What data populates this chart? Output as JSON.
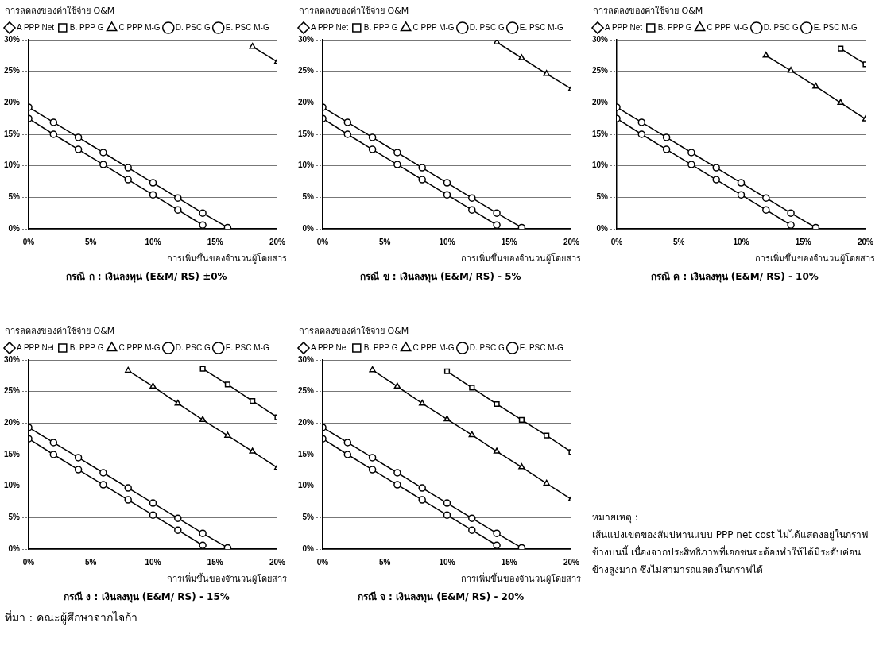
{
  "chart_data": [
    {
      "type": "line",
      "title": "กรณี ก : เงินลงทุน  (E&M/ RS) ±0%",
      "ylabel": "การลดลงของค่าใช้จ่าย O&M",
      "xlabel": "การเพิ่มขึ้นของจำนวนผู้โดยสาร",
      "x": [
        0,
        2,
        4,
        6,
        8,
        10,
        12,
        14,
        16,
        18,
        20
      ],
      "xlim": [
        0,
        20
      ],
      "xticks": [
        {
          "value": 0,
          "label": "0%"
        },
        {
          "value": 5,
          "label": "5%"
        },
        {
          "value": 10,
          "label": "10%"
        },
        {
          "value": 15,
          "label": "15%"
        },
        {
          "value": 20,
          "label": "20%"
        }
      ],
      "ylim": [
        0,
        30
      ],
      "yticks": [
        {
          "value": 0,
          "label": "0%"
        },
        {
          "value": 5,
          "label": "5%"
        },
        {
          "value": 10,
          "label": "10%"
        },
        {
          "value": 15,
          "label": "15%"
        },
        {
          "value": 20,
          "label": "20%"
        },
        {
          "value": 25,
          "label": "25%"
        },
        {
          "value": 30,
          "label": "30%"
        }
      ],
      "grid": "y",
      "legend": "top",
      "line_style": "solid",
      "series": [
        {
          "name": "A PPP Net",
          "color": "#000000",
          "marker": "diamond",
          "values": [
            null,
            null,
            null,
            null,
            null,
            null,
            null,
            null,
            null,
            null,
            null
          ]
        },
        {
          "name": "B. PPP G",
          "color": "#000000",
          "marker": "square",
          "values": [
            null,
            null,
            null,
            null,
            null,
            null,
            null,
            null,
            null,
            null,
            null
          ]
        },
        {
          "name": "C PPP M-G",
          "color": "#000000",
          "marker": "triangle",
          "values": [
            null,
            null,
            null,
            null,
            null,
            null,
            null,
            null,
            null,
            28.9,
            26.5
          ]
        },
        {
          "name": "D. PSC G",
          "color": "#000000",
          "marker": "circle",
          "values": [
            19.3,
            16.9,
            14.5,
            12.1,
            9.7,
            7.3,
            4.9,
            2.5,
            0.2,
            null,
            null
          ]
        },
        {
          "name": "E. PSC M-G",
          "color": "#000000",
          "marker": "circle",
          "values": [
            17.5,
            15.0,
            12.6,
            10.2,
            7.8,
            5.4,
            3.0,
            0.6,
            null,
            null,
            null
          ]
        }
      ]
    },
    {
      "type": "line",
      "title": "กรณี ข : เงินลงทุน (E&M/ RS) - 5%",
      "ylabel": "การลดลงของค่าใช้จ่าย O&M",
      "xlabel": "การเพิ่มขึ้นของจำนวนผู้โดยสาร",
      "x": [
        0,
        2,
        4,
        6,
        8,
        10,
        12,
        14,
        16,
        18,
        20
      ],
      "xlim": [
        0,
        20
      ],
      "xticks": [
        {
          "value": 0,
          "label": "0%"
        },
        {
          "value": 5,
          "label": "5%"
        },
        {
          "value": 10,
          "label": "10%"
        },
        {
          "value": 15,
          "label": "15%"
        },
        {
          "value": 20,
          "label": "20%"
        }
      ],
      "ylim": [
        0,
        30
      ],
      "yticks": [
        {
          "value": 0,
          "label": "0%"
        },
        {
          "value": 5,
          "label": "5%"
        },
        {
          "value": 10,
          "label": "10%"
        },
        {
          "value": 15,
          "label": "15%"
        },
        {
          "value": 20,
          "label": "20%"
        },
        {
          "value": 25,
          "label": "25%"
        },
        {
          "value": 30,
          "label": "30%"
        }
      ],
      "grid": "y",
      "legend": "top",
      "line_style": "solid",
      "series": [
        {
          "name": "A PPP Net",
          "color": "#000000",
          "marker": "diamond",
          "values": [
            null,
            null,
            null,
            null,
            null,
            null,
            null,
            null,
            null,
            null,
            null
          ]
        },
        {
          "name": "B. PPP G",
          "color": "#000000",
          "marker": "square",
          "values": [
            null,
            null,
            null,
            null,
            null,
            null,
            null,
            null,
            null,
            null,
            null
          ]
        },
        {
          "name": "C PPP M-G",
          "color": "#000000",
          "marker": "triangle",
          "values": [
            null,
            null,
            null,
            null,
            null,
            null,
            null,
            29.6,
            27.1,
            24.6,
            22.2
          ]
        },
        {
          "name": "D. PSC G",
          "color": "#000000",
          "marker": "circle",
          "values": [
            19.3,
            16.9,
            14.5,
            12.1,
            9.7,
            7.3,
            4.9,
            2.5,
            0.2,
            null,
            null
          ]
        },
        {
          "name": "E. PSC M-G",
          "color": "#000000",
          "marker": "circle",
          "values": [
            17.5,
            15.0,
            12.6,
            10.2,
            7.8,
            5.4,
            3.0,
            0.6,
            null,
            null,
            null
          ]
        }
      ]
    },
    {
      "type": "line",
      "title": "กรณี ค : เงินลงทุน (E&M/ RS) - 10%",
      "ylabel": "การลดลงของค่าใช้จ่าย O&M",
      "xlabel": "การเพิ่มขึ้นของจำนวนผู้โดยสาร",
      "x": [
        0,
        2,
        4,
        6,
        8,
        10,
        12,
        14,
        16,
        18,
        20
      ],
      "xlim": [
        0,
        20
      ],
      "xticks": [
        {
          "value": 0,
          "label": "0%"
        },
        {
          "value": 5,
          "label": "5%"
        },
        {
          "value": 10,
          "label": "10%"
        },
        {
          "value": 15,
          "label": "15%"
        },
        {
          "value": 20,
          "label": "20%"
        }
      ],
      "ylim": [
        0,
        30
      ],
      "yticks": [
        {
          "value": 0,
          "label": "0%"
        },
        {
          "value": 5,
          "label": "5%"
        },
        {
          "value": 10,
          "label": "10%"
        },
        {
          "value": 15,
          "label": "15%"
        },
        {
          "value": 20,
          "label": "20%"
        },
        {
          "value": 25,
          "label": "25%"
        },
        {
          "value": 30,
          "label": "30%"
        }
      ],
      "grid": "y",
      "legend": "top",
      "line_style": "solid",
      "series": [
        {
          "name": "A PPP Net",
          "color": "#000000",
          "marker": "diamond",
          "values": [
            null,
            null,
            null,
            null,
            null,
            null,
            null,
            null,
            null,
            null,
            null
          ]
        },
        {
          "name": "B. PPP G",
          "color": "#000000",
          "marker": "square",
          "values": [
            null,
            null,
            null,
            null,
            null,
            null,
            null,
            null,
            null,
            28.6,
            26.1
          ]
        },
        {
          "name": "C PPP M-G",
          "color": "#000000",
          "marker": "triangle",
          "values": [
            null,
            null,
            null,
            null,
            null,
            null,
            27.5,
            25.1,
            22.6,
            20.0,
            17.4
          ]
        },
        {
          "name": "D. PSC G",
          "color": "#000000",
          "marker": "circle",
          "values": [
            19.3,
            16.9,
            14.5,
            12.1,
            9.7,
            7.3,
            4.9,
            2.5,
            0.2,
            null,
            null
          ]
        },
        {
          "name": "E. PSC M-G",
          "color": "#000000",
          "marker": "circle",
          "values": [
            17.5,
            15.0,
            12.6,
            10.2,
            7.8,
            5.4,
            3.0,
            0.6,
            null,
            null,
            null
          ]
        }
      ]
    },
    {
      "type": "line",
      "title": "กรณี ง : เงินลงทุน (E&M/ RS) - 15%",
      "ylabel": "การลดลงของค่าใช้จ่าย O&M",
      "xlabel": "การเพิ่มขึ้นของจำนวนผู้โดยสาร",
      "annotations": [
        "ที่มา : คณะผู้ศึกษาจากไจก้า"
      ],
      "x": [
        0,
        2,
        4,
        6,
        8,
        10,
        12,
        14,
        16,
        18,
        20
      ],
      "xlim": [
        0,
        20
      ],
      "xticks": [
        {
          "value": 0,
          "label": "0%"
        },
        {
          "value": 5,
          "label": "5%"
        },
        {
          "value": 10,
          "label": "10%"
        },
        {
          "value": 15,
          "label": "15%"
        },
        {
          "value": 20,
          "label": "20%"
        }
      ],
      "ylim": [
        0,
        30
      ],
      "yticks": [
        {
          "value": 0,
          "label": "0%"
        },
        {
          "value": 5,
          "label": "5%"
        },
        {
          "value": 10,
          "label": "10%"
        },
        {
          "value": 15,
          "label": "15%"
        },
        {
          "value": 20,
          "label": "20%"
        },
        {
          "value": 25,
          "label": "25%"
        },
        {
          "value": 30,
          "label": "30%"
        }
      ],
      "grid": "y",
      "legend": "top",
      "line_style": "solid",
      "series": [
        {
          "name": "A PPP Net",
          "color": "#000000",
          "marker": "diamond",
          "values": [
            null,
            null,
            null,
            null,
            null,
            null,
            null,
            null,
            null,
            null,
            null
          ]
        },
        {
          "name": "B. PPP G",
          "color": "#000000",
          "marker": "square",
          "values": [
            null,
            null,
            null,
            null,
            null,
            null,
            null,
            28.6,
            26.1,
            23.5,
            20.9
          ]
        },
        {
          "name": "C PPP M-G",
          "color": "#000000",
          "marker": "triangle",
          "values": [
            null,
            null,
            null,
            null,
            28.3,
            25.8,
            23.1,
            20.5,
            18.0,
            15.5,
            12.9
          ]
        },
        {
          "name": "D. PSC G",
          "color": "#000000",
          "marker": "circle",
          "values": [
            19.3,
            16.9,
            14.5,
            12.1,
            9.7,
            7.3,
            4.9,
            2.5,
            0.2,
            null,
            null
          ]
        },
        {
          "name": "E. PSC M-G",
          "color": "#000000",
          "marker": "circle",
          "values": [
            17.5,
            15.0,
            12.6,
            10.2,
            7.8,
            5.4,
            3.0,
            0.6,
            null,
            null,
            null
          ]
        }
      ]
    },
    {
      "type": "line",
      "title": "กรณี จ : เงินลงทุน (E&M/ RS)  - 20%",
      "ylabel": "การลดลงของค่าใช้จ่าย O&M",
      "xlabel": "การเพิ่มขึ้นของจำนวนผู้โดยสาร",
      "x": [
        0,
        2,
        4,
        6,
        8,
        10,
        12,
        14,
        16,
        18,
        20
      ],
      "xlim": [
        0,
        20
      ],
      "xticks": [
        {
          "value": 0,
          "label": "0%"
        },
        {
          "value": 5,
          "label": "5%"
        },
        {
          "value": 10,
          "label": "10%"
        },
        {
          "value": 15,
          "label": "15%"
        },
        {
          "value": 20,
          "label": "20%"
        }
      ],
      "ylim": [
        0,
        30
      ],
      "yticks": [
        {
          "value": 0,
          "label": "0%"
        },
        {
          "value": 5,
          "label": "5%"
        },
        {
          "value": 10,
          "label": "10%"
        },
        {
          "value": 15,
          "label": "15%"
        },
        {
          "value": 20,
          "label": "20%"
        },
        {
          "value": 25,
          "label": "25%"
        },
        {
          "value": 30,
          "label": "30%"
        }
      ],
      "grid": "y",
      "legend": "top",
      "line_style": "solid",
      "series": [
        {
          "name": "A PPP Net",
          "color": "#000000",
          "marker": "diamond",
          "values": [
            null,
            null,
            null,
            null,
            null,
            null,
            null,
            null,
            null,
            null,
            null
          ]
        },
        {
          "name": "B. PPP G",
          "color": "#000000",
          "marker": "square",
          "values": [
            null,
            null,
            null,
            null,
            null,
            28.2,
            25.6,
            23.0,
            20.5,
            18.0,
            15.4
          ]
        },
        {
          "name": "C PPP M-G",
          "color": "#000000",
          "marker": "triangle",
          "values": [
            null,
            null,
            28.4,
            25.8,
            23.1,
            20.6,
            18.1,
            15.5,
            13.0,
            10.4,
            7.9
          ]
        },
        {
          "name": "D. PSC G",
          "color": "#000000",
          "marker": "circle",
          "values": [
            19.3,
            16.9,
            14.5,
            12.1,
            9.7,
            7.3,
            4.9,
            2.5,
            0.2,
            null,
            null
          ]
        },
        {
          "name": "E. PSC M-G",
          "color": "#000000",
          "marker": "circle",
          "values": [
            17.5,
            15.0,
            12.6,
            10.2,
            7.8,
            5.4,
            3.0,
            0.6,
            null,
            null,
            null
          ]
        }
      ]
    },
    {
      "type": "other",
      "title": "หมายเหตุ :",
      "annotations": [
        "เส้นแบ่งเขตของสัมปทานแบบ PPP net cost ไม่ได้แสดงอยู่ในกราฟข้างบนนี้ เนื่องจากประสิทธิภาพที่เอกชนจะต้องทำให้ได้มีระดับค่อนข้างสูงมาก ซึ่งไม่สามารถแสดงในกราฟได้"
      ]
    }
  ]
}
